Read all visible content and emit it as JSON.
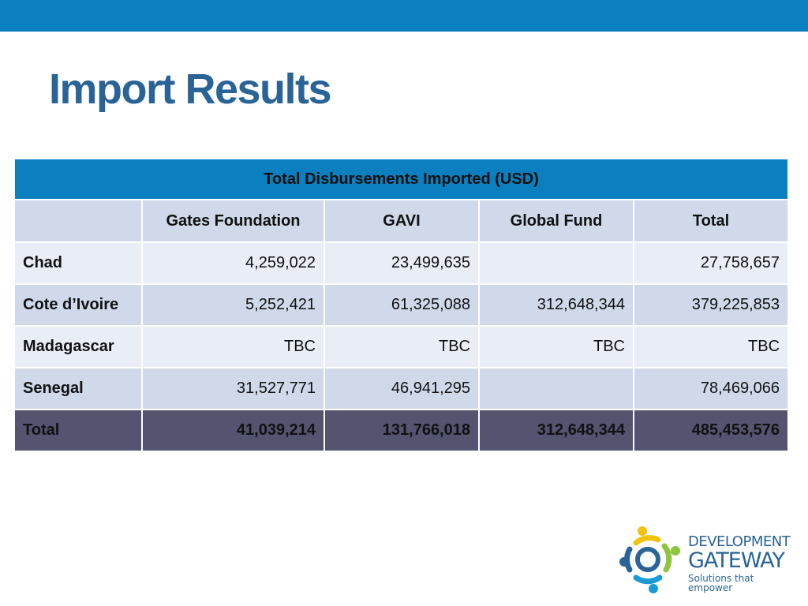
{
  "slide": {
    "title": "Import Results"
  },
  "table": {
    "caption": "Total Disbursements Imported (USD)",
    "columns": [
      "",
      "Gates Foundation",
      "GAVI",
      "Global Fund",
      "Total"
    ],
    "rows": [
      {
        "country": "Chad",
        "values": [
          "4,259,022",
          "23,499,635",
          "",
          "27,758,657"
        ]
      },
      {
        "country": "Cote d’Ivoire",
        "values": [
          "5,252,421",
          "61,325,088",
          "312,648,344",
          "379,225,853"
        ]
      },
      {
        "country": "Madagascar",
        "values": [
          "TBC",
          "TBC",
          "TBC",
          "TBC"
        ]
      },
      {
        "country": "Senegal",
        "values": [
          "31,527,771",
          "46,941,295",
          "",
          "78,469,066"
        ]
      }
    ],
    "total": {
      "label": "Total",
      "values": [
        "41,039,214",
        "131,766,018",
        "312,648,344",
        "485,453,576"
      ]
    }
  },
  "logo": {
    "line1": "DEVELOPMENT",
    "line2": "GATEWAY",
    "tagline": "Solutions that empower"
  },
  "colors": {
    "accent": "#0b7fbf",
    "title": "#2a6496",
    "row_dark": "#cfd9ea",
    "row_light": "#e9edf6",
    "total_row": "#545370"
  }
}
